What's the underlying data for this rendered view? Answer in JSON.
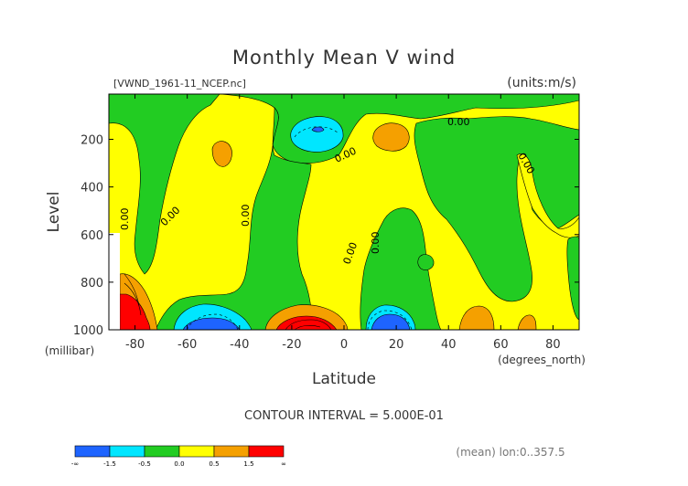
{
  "chart_data": {
    "type": "contour",
    "title": "Monthly Mean V wind",
    "subtitle_left": "[VWND_1961-11_NCEP.nc]",
    "subtitle_right": "(units:m/s)",
    "xlabel": "Latitude",
    "ylabel": "Level",
    "x_unit_label": "(degrees_north)",
    "y_unit_label": "(millibar)",
    "xlim": [
      -90,
      90
    ],
    "ylim": [
      1000,
      10
    ],
    "x_ticks": [
      "-80",
      "-60",
      "-40",
      "-20",
      "0",
      "20",
      "40",
      "60",
      "80"
    ],
    "x_tick_values": [
      -80,
      -60,
      -40,
      -20,
      0,
      20,
      40,
      60,
      80
    ],
    "y_ticks": [
      "200",
      "400",
      "600",
      "800",
      "1000"
    ],
    "y_tick_values": [
      200,
      400,
      600,
      800,
      1000
    ],
    "contour_interval_text": "CONTOUR INTERVAL = 5.000E-01",
    "footnote": "(mean) lon:0..357.5",
    "zero_contour_label": "0.00",
    "colorbar": {
      "labels": [
        "-∞",
        "-1.5",
        "-0.5",
        "0.0",
        "0.5",
        "1.5",
        "∞"
      ],
      "colors": [
        "#1e64ff",
        "#00e6ff",
        "#22cc22",
        "#ffff00",
        "#f5a000",
        "#ff0000"
      ]
    },
    "field_colors": {
      "below_-1.5": "#1e64ff",
      "-1.5_to_-0.5": "#00e6ff",
      "-0.5_to_0": "#22cc22",
      "0_to_0.5": "#ffff00",
      "0.5_to_1.5": "#f5a000",
      "above_1.5": "#ff0000",
      "undefined_region": "#ffffff"
    }
  }
}
